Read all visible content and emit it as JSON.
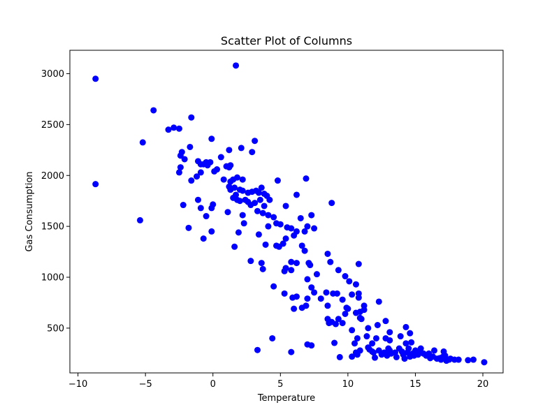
{
  "chart_data": {
    "type": "scatter",
    "title": "Scatter Plot of Columns",
    "xlabel": "Temperature",
    "ylabel": "Gas Consumption",
    "xlim": [
      -10.6,
      21.5
    ],
    "ylim": [
      60,
      3230
    ],
    "xticks": [
      -10,
      -5,
      0,
      5,
      10,
      15,
      20
    ],
    "yticks": [
      500,
      1000,
      1500,
      2000,
      2500,
      3000
    ],
    "grid": false,
    "marker_color": "#0000ff",
    "series": [
      {
        "points": [
          [
            -8.7,
            2950
          ],
          [
            -8.7,
            1915
          ],
          [
            -5.4,
            1560
          ],
          [
            -5.2,
            2325
          ],
          [
            -4.4,
            2640
          ],
          [
            -3.3,
            2450
          ],
          [
            -2.9,
            2470
          ],
          [
            -2.5,
            2460
          ],
          [
            -1.6,
            2570
          ],
          [
            -2.4,
            2195
          ],
          [
            -2.3,
            2230
          ],
          [
            -2.4,
            2080
          ],
          [
            -2.5,
            2030
          ],
          [
            -2.1,
            2160
          ],
          [
            -1.7,
            2280
          ],
          [
            -1.1,
            2140
          ],
          [
            -0.9,
            2110
          ],
          [
            -0.7,
            2110
          ],
          [
            -0.5,
            2130
          ],
          [
            -0.4,
            2100
          ],
          [
            -0.2,
            2130
          ],
          [
            -0.1,
            2360
          ],
          [
            0.1,
            2040
          ],
          [
            0.3,
            2060
          ],
          [
            0.6,
            2180
          ],
          [
            0.8,
            1960
          ],
          [
            -1.6,
            1950
          ],
          [
            -1.2,
            1990
          ],
          [
            -0.9,
            2030
          ],
          [
            -1.1,
            1760
          ],
          [
            -2.2,
            1710
          ],
          [
            -1.8,
            1485
          ],
          [
            -0.9,
            1680
          ],
          [
            -0.5,
            1600
          ],
          [
            -0.7,
            1380
          ],
          [
            -0.1,
            1680
          ],
          [
            0.0,
            1715
          ],
          [
            -0.1,
            1450
          ],
          [
            1.0,
            2090
          ],
          [
            1.2,
            2080
          ],
          [
            1.3,
            2100
          ],
          [
            1.2,
            2250
          ],
          [
            1.1,
            1640
          ],
          [
            1.7,
            3080
          ],
          [
            2.1,
            2270
          ],
          [
            2.9,
            2230
          ],
          [
            3.1,
            2340
          ],
          [
            1.3,
            1940
          ],
          [
            1.5,
            1960
          ],
          [
            1.8,
            1980
          ],
          [
            2.2,
            1960
          ],
          [
            1.2,
            1890
          ],
          [
            1.3,
            1860
          ],
          [
            1.6,
            1880
          ],
          [
            2.0,
            1860
          ],
          [
            2.2,
            1850
          ],
          [
            1.7,
            1810
          ],
          [
            2.6,
            1830
          ],
          [
            2.9,
            1840
          ],
          [
            3.2,
            1850
          ],
          [
            3.4,
            1830
          ],
          [
            3.6,
            1880
          ],
          [
            3.8,
            1820
          ],
          [
            4.0,
            1800
          ],
          [
            1.5,
            1780
          ],
          [
            1.8,
            1760
          ],
          [
            2.0,
            1750
          ],
          [
            2.4,
            1760
          ],
          [
            2.6,
            1740
          ],
          [
            2.8,
            1710
          ],
          [
            3.1,
            1730
          ],
          [
            3.3,
            1650
          ],
          [
            3.5,
            1760
          ],
          [
            3.8,
            1700
          ],
          [
            4.2,
            1760
          ],
          [
            3.7,
            1630
          ],
          [
            2.2,
            1610
          ],
          [
            2.3,
            1530
          ],
          [
            3.4,
            1420
          ],
          [
            1.9,
            1440
          ],
          [
            1.6,
            1300
          ],
          [
            4.1,
            1610
          ],
          [
            4.5,
            1590
          ],
          [
            5.4,
            1700
          ],
          [
            5.0,
            1520
          ],
          [
            4.7,
            1530
          ],
          [
            4.1,
            1500
          ],
          [
            5.5,
            1490
          ],
          [
            5.8,
            1480
          ],
          [
            6.2,
            1450
          ],
          [
            6.5,
            1580
          ],
          [
            7.0,
            1500
          ],
          [
            7.5,
            1480
          ],
          [
            7.3,
            1610
          ],
          [
            6.8,
            1450
          ],
          [
            6.0,
            1410
          ],
          [
            5.4,
            1380
          ],
          [
            5.2,
            1330
          ],
          [
            4.9,
            1300
          ],
          [
            4.7,
            1310
          ],
          [
            3.9,
            1320
          ],
          [
            6.6,
            1310
          ],
          [
            6.8,
            1260
          ],
          [
            4.8,
            1950
          ],
          [
            6.9,
            1970
          ],
          [
            6.2,
            1810
          ],
          [
            8.8,
            1730
          ],
          [
            2.8,
            1160
          ],
          [
            3.6,
            1140
          ],
          [
            3.7,
            1080
          ],
          [
            5.3,
            1060
          ],
          [
            5.4,
            1090
          ],
          [
            5.8,
            1150
          ],
          [
            6.2,
            1140
          ],
          [
            5.8,
            1070
          ],
          [
            7.1,
            1140
          ],
          [
            7.2,
            1120
          ],
          [
            7.7,
            1030
          ],
          [
            8.5,
            1230
          ],
          [
            8.7,
            1150
          ],
          [
            9.3,
            1070
          ],
          [
            9.8,
            1010
          ],
          [
            10.1,
            960
          ],
          [
            10.6,
            930
          ],
          [
            10.8,
            1130
          ],
          [
            7.0,
            980
          ],
          [
            7.3,
            900
          ],
          [
            7.5,
            850
          ],
          [
            8.0,
            790
          ],
          [
            8.4,
            850
          ],
          [
            8.9,
            840
          ],
          [
            9.2,
            840
          ],
          [
            9.6,
            780
          ],
          [
            10.3,
            830
          ],
          [
            10.8,
            840
          ],
          [
            10.8,
            800
          ],
          [
            4.5,
            910
          ],
          [
            5.3,
            840
          ],
          [
            5.9,
            800
          ],
          [
            6.2,
            810
          ],
          [
            7.0,
            790
          ],
          [
            6.0,
            690
          ],
          [
            6.6,
            700
          ],
          [
            6.9,
            720
          ],
          [
            9.9,
            700
          ],
          [
            10.0,
            690
          ],
          [
            10.6,
            650
          ],
          [
            10.9,
            660
          ],
          [
            11.2,
            720
          ],
          [
            11.2,
            680
          ],
          [
            12.3,
            760
          ],
          [
            8.5,
            720
          ],
          [
            8.5,
            590
          ],
          [
            8.6,
            550
          ],
          [
            8.8,
            560
          ],
          [
            9.1,
            540
          ],
          [
            9.3,
            590
          ],
          [
            9.6,
            550
          ],
          [
            9.8,
            640
          ],
          [
            10.9,
            600
          ],
          [
            11.0,
            590
          ],
          [
            11.5,
            500
          ],
          [
            12.2,
            530
          ],
          [
            12.8,
            570
          ],
          [
            13.1,
            460
          ],
          [
            14.3,
            510
          ],
          [
            14.6,
            450
          ],
          [
            9.0,
            355
          ],
          [
            10.3,
            480
          ],
          [
            10.5,
            350
          ],
          [
            10.7,
            400
          ],
          [
            11.4,
            420
          ],
          [
            11.8,
            350
          ],
          [
            12.1,
            400
          ],
          [
            12.8,
            400
          ],
          [
            13.1,
            380
          ],
          [
            7.0,
            340
          ],
          [
            7.3,
            330
          ],
          [
            3.3,
            285
          ],
          [
            4.4,
            400
          ],
          [
            5.8,
            265
          ],
          [
            9.4,
            215
          ],
          [
            10.3,
            220
          ],
          [
            10.6,
            260
          ],
          [
            10.9,
            280
          ],
          [
            11.5,
            310
          ],
          [
            11.6,
            290
          ],
          [
            11.8,
            270
          ],
          [
            12.0,
            210
          ],
          [
            12.3,
            280
          ],
          [
            12.5,
            240
          ],
          [
            12.7,
            260
          ],
          [
            13.0,
            300
          ],
          [
            13.1,
            280
          ],
          [
            13.2,
            250
          ],
          [
            13.5,
            260
          ],
          [
            13.8,
            300
          ],
          [
            13.9,
            420
          ],
          [
            14.0,
            270
          ],
          [
            14.3,
            350
          ],
          [
            14.5,
            300
          ],
          [
            14.7,
            360
          ],
          [
            14.1,
            240
          ],
          [
            14.4,
            260
          ],
          [
            14.6,
            220
          ],
          [
            14.8,
            250
          ],
          [
            15.0,
            280
          ],
          [
            15.2,
            240
          ],
          [
            15.4,
            300
          ],
          [
            15.6,
            250
          ],
          [
            16.0,
            250
          ],
          [
            16.3,
            220
          ],
          [
            16.4,
            280
          ],
          [
            16.6,
            200
          ],
          [
            16.9,
            190
          ],
          [
            17.1,
            270
          ],
          [
            17.2,
            230
          ],
          [
            17.3,
            180
          ],
          [
            17.6,
            200
          ],
          [
            17.9,
            190
          ],
          [
            18.2,
            190
          ],
          [
            18.9,
            185
          ],
          [
            19.3,
            190
          ],
          [
            20.1,
            165
          ],
          [
            17.5,
            190
          ],
          [
            16.8,
            205
          ],
          [
            15.8,
            230
          ],
          [
            15.3,
            260
          ],
          [
            14.9,
            230
          ],
          [
            13.6,
            215
          ],
          [
            12.9,
            230
          ],
          [
            11.9,
            260
          ],
          [
            10.7,
            240
          ],
          [
            14.2,
            200
          ],
          [
            16.1,
            205
          ],
          [
            17.0,
            215
          ]
        ]
      }
    ]
  }
}
